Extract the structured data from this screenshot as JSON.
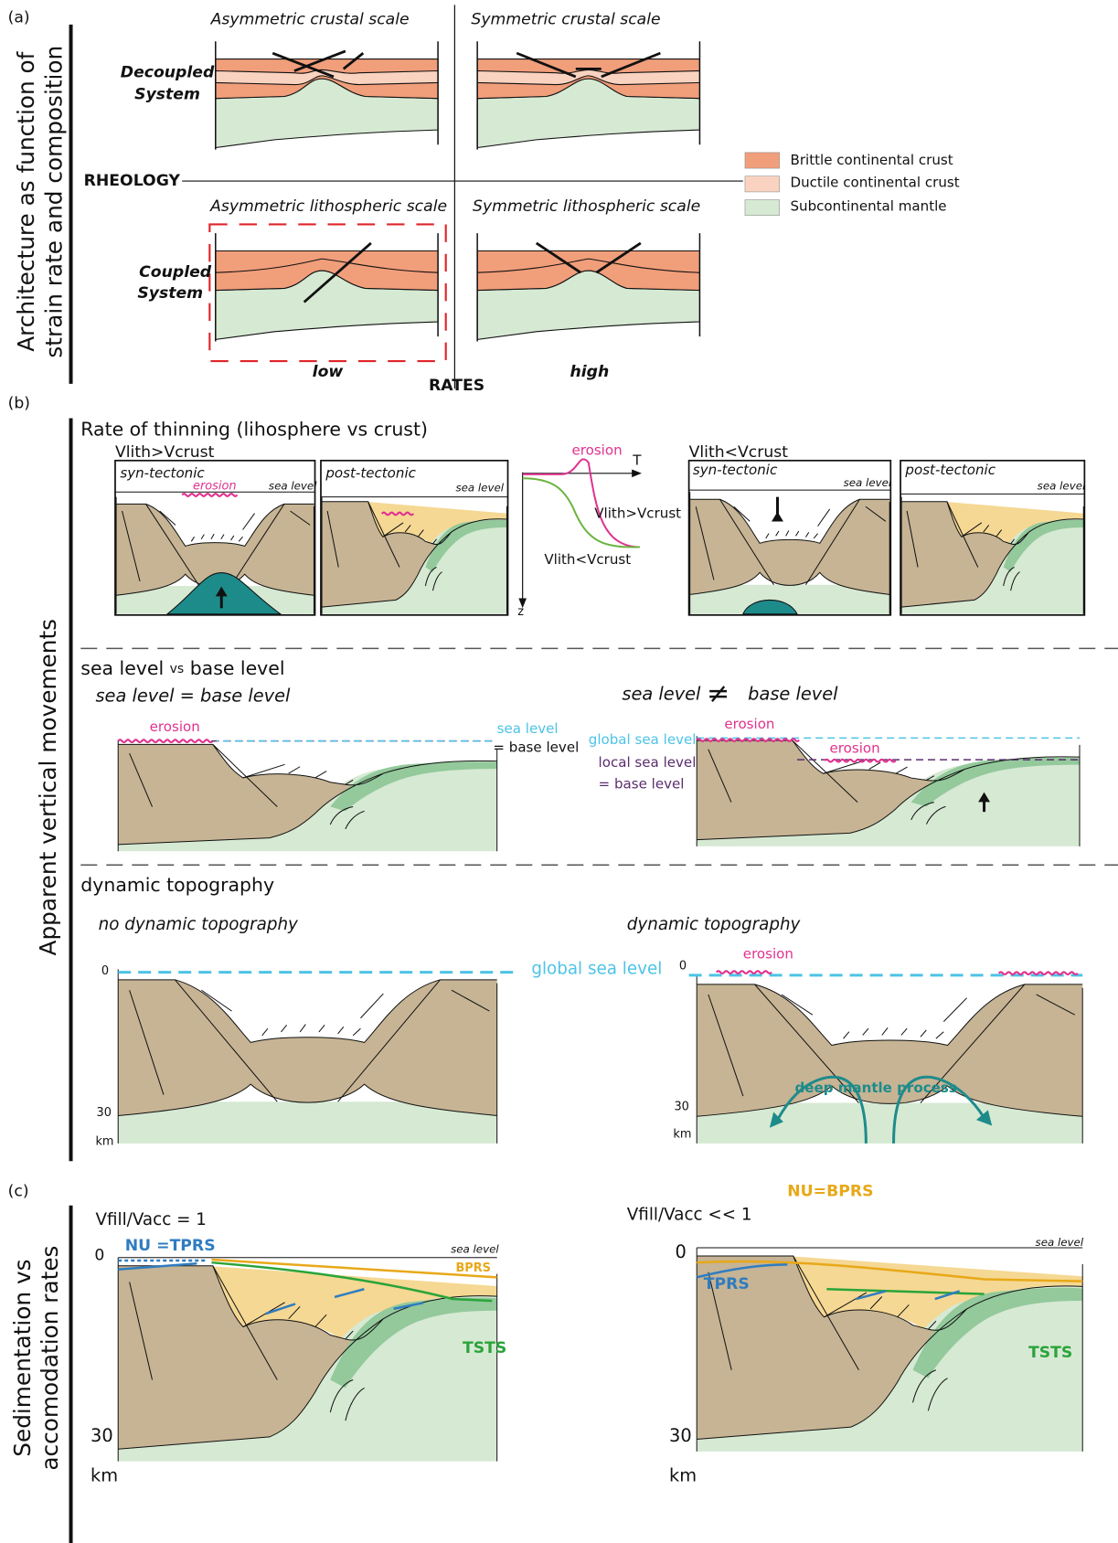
{
  "panel_a": {
    "label": "(a)",
    "side_label": [
      "Architecture as function of",
      "strain rate and composition"
    ],
    "titles": [
      "Asymmetric crustal scale",
      "Symmetric crustal scale",
      "Asymmetric lithospheric scale",
      "Symmetric lithospheric scale"
    ],
    "decoupled_system": [
      "Decoupled",
      "System"
    ],
    "coupled_system": [
      "Coupled",
      "System"
    ],
    "rheology": "RHEOLOGY",
    "rates": "RATES",
    "low": "low",
    "high": "high",
    "legend": [
      {
        "label": "Brittle continental crust",
        "color": "#f19e7b"
      },
      {
        "label": "Ductile continental crust",
        "color": "#f9d3c0"
      },
      {
        "label": "Subcontinental mantle",
        "color": "#d6e9d3"
      }
    ]
  },
  "panel_b": {
    "label": "(b)",
    "side_label": "Apparent vertical movements",
    "thinning": {
      "title": "Rate of thinning (lihosphere vs crust)",
      "cases": [
        {
          "heading": "Vlith>Vcrust",
          "syn_label": "syn-tectonic",
          "erosion": "erosion",
          "syn_sea_level": "sea level",
          "post_label": "post-tectonic",
          "post_sea_level": "sea level"
        },
        {
          "heading": "Vlith<Vcrust",
          "syn_label": "syn-tectonic",
          "syn_sea_level": "sea level",
          "post_label": "post-tectonic",
          "post_sea_level": "sea level"
        }
      ],
      "graph": {
        "erosion": "erosion",
        "t_axis": "T",
        "z_axis": "z",
        "curve_fast": "Vlith>Vcrust",
        "curve_slow": "Vlith<Vcrust"
      }
    },
    "base_level": {
      "title": [
        "sea level",
        "vs",
        "base level"
      ],
      "left": {
        "heading": "sea level = base level",
        "erosion": "erosion",
        "sea_level": "sea level",
        "base_level": "= base level"
      },
      "right": {
        "heading": [
          "sea level",
          "≠",
          "base level"
        ],
        "global_sea_level": "global sea level",
        "local_sea_level": "local sea level",
        "base_level": "= base level",
        "erosion": [
          "erosion",
          "erosion"
        ]
      }
    },
    "dynamic": {
      "title": "dynamic topography",
      "left": {
        "heading": "no dynamic topography",
        "depth_top": "0",
        "depth_bottom": "30",
        "unit": "km",
        "global_sea_level": "global sea level"
      },
      "right": {
        "heading": "dynamic topography",
        "depth_top": "0",
        "erosion": "erosion",
        "depth_bottom": "30",
        "unit": "km",
        "process": "deep mantle process"
      }
    }
  },
  "panel_c": {
    "label": "(c)",
    "side_label": [
      "Sedimentation vs",
      "accomodation rates"
    ],
    "left": {
      "heading": "Vfill/Vacc = 1",
      "nu": "NU =TPRS",
      "sea_level": "sea level",
      "bprs": "BPRS",
      "tsts": "TSTS",
      "depth_top": "0",
      "depth_bottom": "30",
      "unit": "km"
    },
    "right": {
      "title": "NU=BPRS",
      "heading": "Vfill/Vacc << 1",
      "sea_level": "sea level",
      "tprs": "TPRS",
      "tsts": "TSTS",
      "depth_top": "0",
      "depth_bottom": "30",
      "unit": "km"
    }
  }
}
